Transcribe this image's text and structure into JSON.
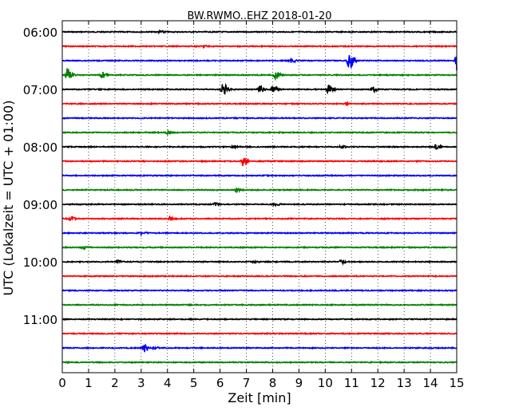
{
  "chart_data": {
    "type": "line",
    "title": "BW.RWMO..EHZ 2018-01-20",
    "xlabel": "Zeit  [min]",
    "ylabel": "UTC (Lokalzeit = UTC + 01:00)",
    "xlim": [
      0,
      15
    ],
    "x_ticks": [
      0,
      1,
      2,
      3,
      4,
      5,
      6,
      7,
      8,
      9,
      10,
      11,
      12,
      13,
      14,
      15
    ],
    "x_tick_labels": [
      "0",
      "1",
      "2",
      "3",
      "4",
      "5",
      "6",
      "7",
      "8",
      "9",
      "10",
      "11",
      "12",
      "13",
      "14",
      "15"
    ],
    "y_tick_labels": [
      "06:00",
      "07:00",
      "08:00",
      "09:00",
      "10:00",
      "11:00"
    ],
    "grid": true,
    "trace_interval_min": 15,
    "colors": [
      "#000000",
      "#ff0000",
      "#0000ff",
      "#008000"
    ],
    "series": [
      {
        "start": "06:00",
        "color": "#000000",
        "events": [
          {
            "x": 3.7,
            "amp": 0.08
          }
        ]
      },
      {
        "start": "06:15",
        "color": "#ff0000",
        "events": [
          {
            "x": 5.4,
            "amp": 0.06
          }
        ]
      },
      {
        "start": "06:30",
        "color": "#0000ff",
        "events": [
          {
            "x": 8.7,
            "amp": 0.12
          },
          {
            "x": 10.9,
            "amp": 0.7
          },
          {
            "x": 15.0,
            "amp": 0.6
          }
        ]
      },
      {
        "start": "06:45",
        "color": "#008000",
        "events": [
          {
            "x": 0.2,
            "amp": 0.45
          },
          {
            "x": 1.5,
            "amp": 0.2
          },
          {
            "x": 8.1,
            "amp": 0.25
          }
        ]
      },
      {
        "start": "07:00",
        "color": "#000000",
        "events": [
          {
            "x": 6.1,
            "amp": 0.45
          },
          {
            "x": 7.5,
            "amp": 0.2
          },
          {
            "x": 8.0,
            "amp": 0.25
          },
          {
            "x": 10.1,
            "amp": 0.35
          },
          {
            "x": 11.8,
            "amp": 0.15
          }
        ]
      },
      {
        "start": "07:15",
        "color": "#ff0000",
        "events": [
          {
            "x": 10.8,
            "amp": 0.08
          }
        ]
      },
      {
        "start": "07:30",
        "color": "#0000ff",
        "events": []
      },
      {
        "start": "07:45",
        "color": "#008000",
        "events": [
          {
            "x": 4.0,
            "amp": 0.08
          }
        ]
      },
      {
        "start": "08:00",
        "color": "#000000",
        "events": [
          {
            "x": 6.5,
            "amp": 0.08
          },
          {
            "x": 10.6,
            "amp": 0.08
          },
          {
            "x": 14.2,
            "amp": 0.15
          }
        ]
      },
      {
        "start": "08:15",
        "color": "#ff0000",
        "events": [
          {
            "x": 6.85,
            "amp": 0.3
          }
        ]
      },
      {
        "start": "08:30",
        "color": "#0000ff",
        "events": []
      },
      {
        "start": "08:45",
        "color": "#008000",
        "events": [
          {
            "x": 6.6,
            "amp": 0.08
          }
        ]
      },
      {
        "start": "09:00",
        "color": "#000000",
        "events": [
          {
            "x": 5.8,
            "amp": 0.08
          },
          {
            "x": 8.1,
            "amp": 0.06
          }
        ]
      },
      {
        "start": "09:15",
        "color": "#ff0000",
        "events": [
          {
            "x": 0.3,
            "amp": 0.15
          },
          {
            "x": 4.1,
            "amp": 0.15
          }
        ]
      },
      {
        "start": "09:30",
        "color": "#0000ff",
        "events": [
          {
            "x": 3.0,
            "amp": 0.1
          }
        ]
      },
      {
        "start": "09:45",
        "color": "#008000",
        "events": [
          {
            "x": 0.8,
            "amp": 0.12
          }
        ]
      },
      {
        "start": "10:00",
        "color": "#000000",
        "events": [
          {
            "x": 2.1,
            "amp": 0.08
          },
          {
            "x": 7.3,
            "amp": 0.06
          },
          {
            "x": 10.6,
            "amp": 0.1
          }
        ]
      },
      {
        "start": "10:15",
        "color": "#ff0000",
        "events": []
      },
      {
        "start": "10:30",
        "color": "#0000ff",
        "events": []
      },
      {
        "start": "10:45",
        "color": "#008000",
        "events": []
      },
      {
        "start": "11:00",
        "color": "#000000",
        "events": []
      },
      {
        "start": "11:15",
        "color": "#ff0000",
        "events": []
      },
      {
        "start": "11:30",
        "color": "#0000ff",
        "events": [
          {
            "x": 3.1,
            "amp": 0.28
          },
          {
            "x": 3.5,
            "amp": 0.08
          }
        ]
      },
      {
        "start": "11:45",
        "color": "#008000",
        "events": []
      }
    ]
  }
}
